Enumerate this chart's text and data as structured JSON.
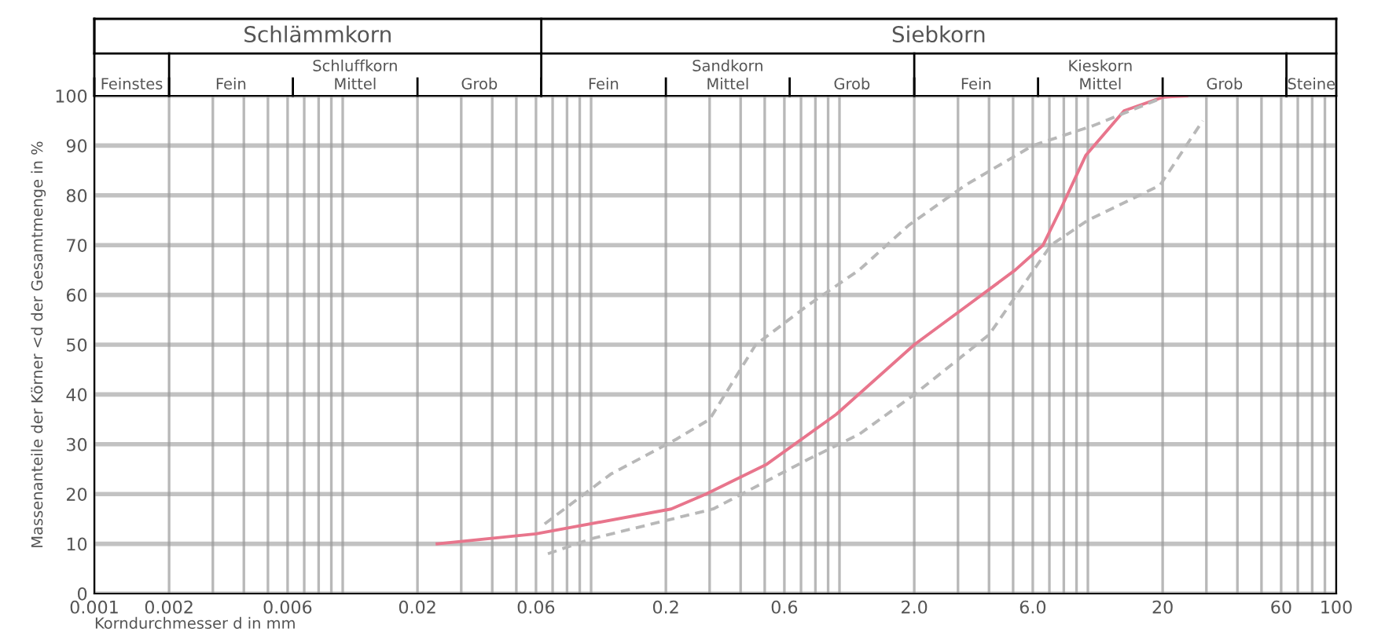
{
  "chart_data": {
    "type": "line",
    "log": "x",
    "xlabel": "Korndurchmesser d in mm",
    "ylabel": "Massenanteile der Körner <d der Gesamtmenge in %",
    "xlim": [
      0.001,
      100
    ],
    "ylim": [
      0,
      100
    ],
    "xticks": [
      0.001,
      0.002,
      0.006,
      0.02,
      0.06,
      0.2,
      0.6,
      {
        "value": 2,
        "label": "2.0"
      },
      {
        "value": 6,
        "label": "6.0"
      },
      20,
      60,
      100
    ],
    "yticks": [
      0,
      10,
      20,
      30,
      40,
      50,
      60,
      70,
      80,
      90,
      100
    ],
    "grid": true,
    "marker": "none",
    "annotations": [
      "Schlämmkorn",
      "Siebkorn",
      "Feinstes",
      "Schluffkorn",
      "Fein",
      "Mittel",
      "Grob",
      "Sandkorn",
      "Fein",
      "Mittel",
      "Grob",
      "Kieskorn",
      "Fein",
      "Mittel",
      "Grob",
      "Steine"
    ],
    "series": [
      {
        "color": "#e8758c",
        "line_style": "solid",
        "x": [
          0.024,
          0.06,
          0.21,
          0.29,
          0.51,
          0.97,
          2.0,
          3.3,
          5.1,
          6.6,
          7.9,
          9.8,
          14,
          20,
          25
        ],
        "values": [
          10,
          12,
          17,
          20,
          26,
          36,
          50,
          58,
          65,
          70,
          78,
          88,
          97,
          99.7,
          100
        ]
      },
      {
        "color": "#b8b8b8",
        "line_style": "dashed",
        "x": [
          0.065,
          0.12,
          0.22,
          0.3,
          0.46,
          0.75,
          1.2,
          1.9,
          3.2,
          6.0,
          10.5,
          19.5
        ],
        "values": [
          14,
          24,
          31,
          35,
          50,
          58,
          65,
          74,
          82,
          90,
          94,
          99.4
        ]
      },
      {
        "color": "#b8b8b8",
        "line_style": "dashed",
        "x": [
          0.067,
          0.1,
          0.31,
          0.75,
          1.2,
          2.0,
          4.0,
          7.1,
          10,
          19.5,
          29
        ],
        "values": [
          8,
          11,
          17,
          27,
          32,
          40,
          52,
          70,
          75,
          82,
          95
        ]
      }
    ]
  }
}
